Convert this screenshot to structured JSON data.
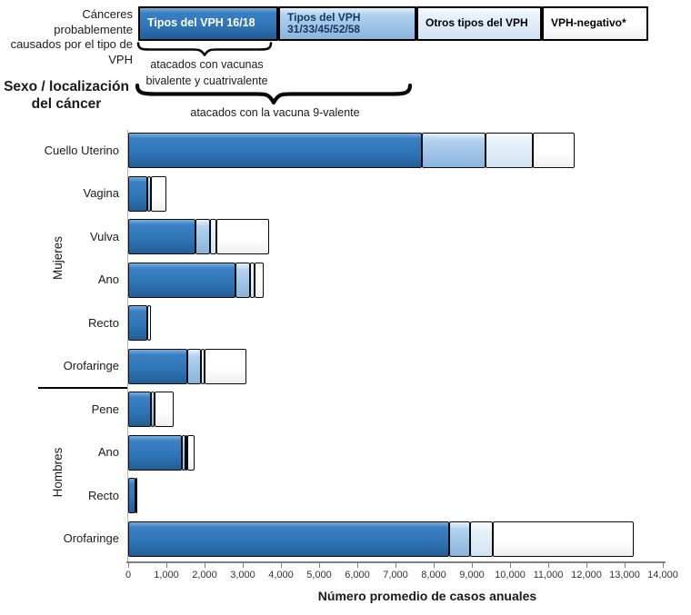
{
  "header": {
    "left_note": "Cánceres  probablemente\ncausados por el tipo de\nVPH",
    "sex_location_label": "Sexo / localización\ndel cáncer"
  },
  "legend": {
    "items": [
      {
        "label": "Tipos del VPH 16/18",
        "color": "#2E74B5",
        "text_color": "#FFFFFF"
      },
      {
        "label": "Tipos del VPH\n31/33/45/52/58",
        "color": "#9DC3E6",
        "text_color": "#17375E"
      },
      {
        "label": "Otros tipos del VPH",
        "color": "#DEEBF7",
        "text_color": "#000000"
      },
      {
        "label": "VPH-negativo*",
        "color": "#FFFFFF",
        "text_color": "#000000"
      }
    ],
    "brace_bivalent_label": "atacados con vacunas\nbivalente y cuatrivalente",
    "brace_9valent_label": "atacados con la vacuna 9-valente"
  },
  "chart_data": {
    "type": "bar",
    "orientation": "horizontal",
    "stacked": true,
    "xlabel": "Número promedio de casos anuales",
    "xlim": [
      0,
      14000
    ],
    "x_tick_step": 1000,
    "x_tick_labels": [
      "0",
      "1,000",
      "2,000",
      "3,000",
      "4,000",
      "5,000",
      "6,000",
      "7,000",
      "8,000",
      "9,000",
      "10,000",
      "11,000",
      "12,000",
      "13,000",
      "14,000"
    ],
    "grid": false,
    "series_names": [
      "Tipos del VPH 16/18",
      "Tipos del VPH 31/33/45/52/58",
      "Otros tipos del VPH",
      "VPH-negativo*"
    ],
    "series_colors": [
      "#2E74B5",
      "#9DC3E6",
      "#DEEBF7",
      "#FFFFFF"
    ],
    "groups": [
      {
        "name": "Mujeres",
        "rows": [
          "Cuello Uterino",
          "Vagina",
          "Vulva",
          "Ano",
          "Recto",
          "Orofaringe"
        ]
      },
      {
        "name": "Hombres",
        "rows": [
          "Pene",
          "Ano",
          "Recto",
          "Orofaringe"
        ]
      }
    ],
    "rows": [
      {
        "group": "Mujeres",
        "label": "Cuello Uterino",
        "values": [
          7700,
          1650,
          1250,
          1100
        ]
      },
      {
        "group": "Mujeres",
        "label": "Vagina",
        "values": [
          500,
          100,
          0,
          400
        ]
      },
      {
        "group": "Mujeres",
        "label": "Vulva",
        "values": [
          1750,
          400,
          150,
          1400
        ]
      },
      {
        "group": "Mujeres",
        "label": "Ano",
        "values": [
          2800,
          400,
          100,
          250
        ]
      },
      {
        "group": "Mujeres",
        "label": "Recto",
        "values": [
          500,
          0,
          0,
          100
        ]
      },
      {
        "group": "Mujeres",
        "label": "Orofaringe",
        "values": [
          1550,
          350,
          100,
          1100
        ]
      },
      {
        "group": "Hombres",
        "label": "Pene",
        "values": [
          600,
          100,
          0,
          500
        ]
      },
      {
        "group": "Hombres",
        "label": "Ano",
        "values": [
          1400,
          100,
          50,
          200
        ]
      },
      {
        "group": "Hombres",
        "label": "Recto",
        "values": [
          200,
          0,
          0,
          50
        ]
      },
      {
        "group": "Hombres",
        "label": "Orofaringe",
        "values": [
          8400,
          550,
          600,
          3700
        ]
      }
    ]
  }
}
